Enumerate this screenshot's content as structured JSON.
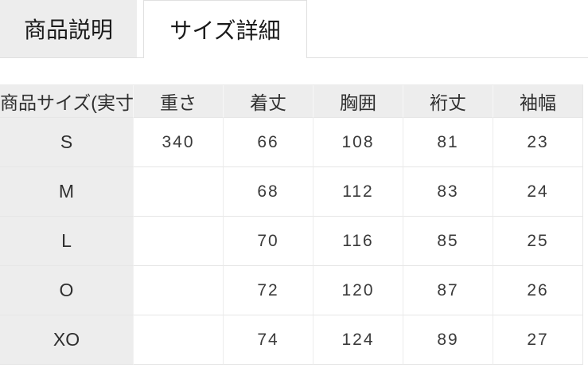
{
  "tabs": {
    "items": [
      {
        "label": "商品説明",
        "active": false
      },
      {
        "label": "サイズ詳細",
        "active": true
      }
    ]
  },
  "size_table": {
    "columns": [
      "商品サイズ(実寸)",
      "重さ",
      "着丈",
      "胸囲",
      "裄丈",
      "袖幅"
    ],
    "rows": [
      {
        "size": "S",
        "values": [
          "340",
          "66",
          "108",
          "81",
          "23"
        ]
      },
      {
        "size": "M",
        "values": [
          "",
          "68",
          "112",
          "83",
          "24"
        ]
      },
      {
        "size": "L",
        "values": [
          "",
          "70",
          "116",
          "85",
          "25"
        ]
      },
      {
        "size": "O",
        "values": [
          "",
          "72",
          "120",
          "87",
          "26"
        ]
      },
      {
        "size": "XO",
        "values": [
          "",
          "74",
          "124",
          "89",
          "27"
        ]
      }
    ]
  },
  "colors": {
    "tab_inactive_bg": "#ededed",
    "active_tab_border": "#e0e0e0",
    "table_header_bg": "#ededed",
    "cell_border": "#e6e6e6",
    "tab_text": "#1a1a1a",
    "table_text": "#2f2f2f",
    "value_text": "#3a3a3a"
  }
}
